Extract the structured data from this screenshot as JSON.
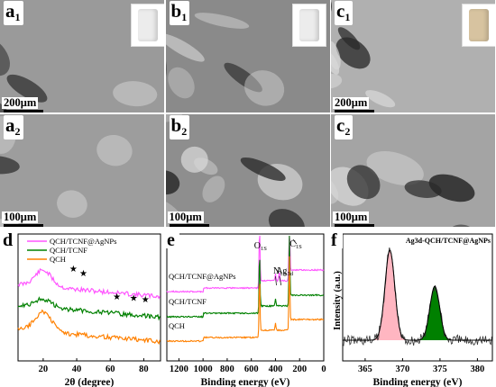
{
  "sem_panels": [
    {
      "id": "a1",
      "letter": "a",
      "sub": "1",
      "scale": "200μm",
      "has_photo": true,
      "tone": "#9a9a9a"
    },
    {
      "id": "b1",
      "letter": "b",
      "sub": "1",
      "scale": "",
      "has_photo": true,
      "tone": "#8a8a8a"
    },
    {
      "id": "c1",
      "letter": "c",
      "sub": "1",
      "scale": "200μm",
      "has_photo": true,
      "tone": "#b0b0b0"
    },
    {
      "id": "a2",
      "letter": "a",
      "sub": "2",
      "scale": "100μm",
      "has_photo": false,
      "tone": "#9d9d9d"
    },
    {
      "id": "b2",
      "letter": "b",
      "sub": "2",
      "scale": "100μm",
      "has_photo": false,
      "tone": "#8e8e8e"
    },
    {
      "id": "c2",
      "letter": "c",
      "sub": "2",
      "scale": "100μm",
      "has_photo": false,
      "tone": "#a4a4a4"
    }
  ],
  "chart_data": [
    {
      "panel": "d",
      "type": "line",
      "xlabel": "2θ (degree)",
      "ylabel": "",
      "xlim": [
        5,
        90
      ],
      "xticks": [
        20,
        40,
        60,
        80
      ],
      "series": [
        {
          "name": "QCH/TCNF@AgNPs",
          "color": "#ff55ff",
          "offset": 2.0,
          "peak_height": 1.0
        },
        {
          "name": "QCH/TCNF",
          "color": "#008000",
          "offset": 1.0,
          "peak_height": 0.5
        },
        {
          "name": "QCH",
          "color": "#ff8000",
          "offset": 0.0,
          "peak_height": 1.2
        }
      ],
      "markers": {
        "symbol": "★",
        "x": [
          38,
          44,
          64,
          74,
          81
        ]
      }
    },
    {
      "panel": "e",
      "type": "line",
      "xlabel": "Binding energy (eV)",
      "ylabel": "",
      "xlim": [
        1300,
        0
      ],
      "reversed": true,
      "xticks": [
        1200,
        1000,
        800,
        600,
        400,
        200,
        0
      ],
      "series": [
        {
          "name": "QCH/TCNF@AgNPs",
          "color": "#ff55ff",
          "offset": 2.0
        },
        {
          "name": "QCH/TCNF",
          "color": "#008000",
          "offset": 1.0
        },
        {
          "name": "QCH",
          "color": "#ff8000",
          "offset": 0.0
        }
      ],
      "peaks": [
        {
          "label": "O",
          "sub": "1S",
          "x": 532
        },
        {
          "label": "N",
          "sub": "1S",
          "x": 400
        },
        {
          "label": "Ag",
          "sub": "3d",
          "x": 368
        },
        {
          "label": "C",
          "sub": "1S",
          "x": 285
        }
      ]
    },
    {
      "panel": "f",
      "type": "line",
      "title": "Ag3d-QCH/TCNF@AgNPs",
      "xlabel": "Binding energy (eV)",
      "ylabel": "Intensity (a.u.)",
      "xlim": [
        362,
        382
      ],
      "xticks": [
        365,
        370,
        375,
        380
      ],
      "peaks": [
        {
          "x": 368.3,
          "height": 1.0,
          "fill": "#ffb6c1"
        },
        {
          "x": 374.3,
          "height": 0.6,
          "fill": "#008000"
        }
      ]
    }
  ]
}
